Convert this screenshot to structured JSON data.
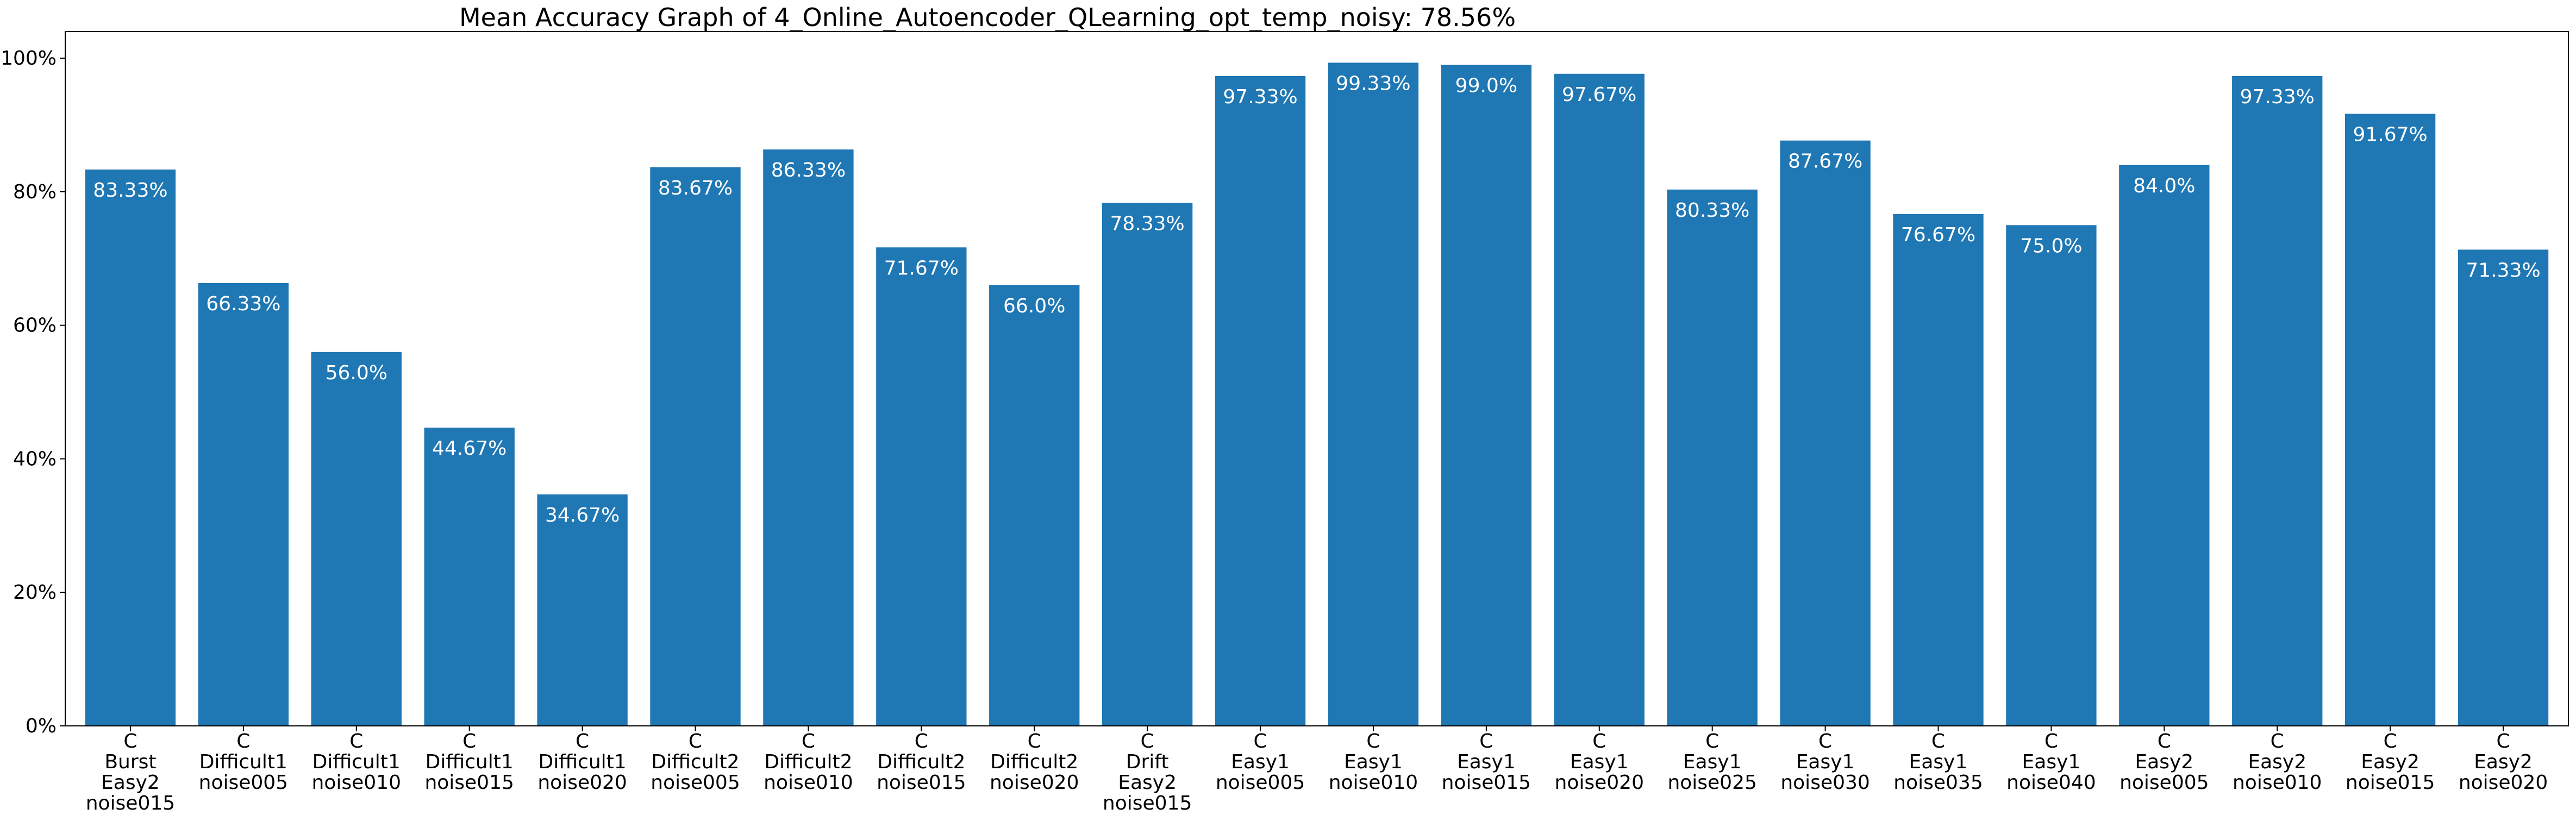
{
  "chart_data": {
    "type": "bar",
    "title": "Mean Accuracy Graph of 4_Online_Autoencoder_QLearning_opt_temp_noisy: 78.56%",
    "xlabel": "",
    "ylabel": "",
    "ylim": [
      0,
      104
    ],
    "yticks": [
      0,
      20,
      40,
      60,
      80,
      100
    ],
    "ytick_labels": [
      "0%",
      "20%",
      "40%",
      "60%",
      "80%",
      "100%"
    ],
    "grid": false,
    "bar_color": "#1f77b4",
    "label_color": "#ffffff",
    "categories": [
      [
        "C",
        "Burst",
        "Easy2",
        "noise015"
      ],
      [
        "C",
        "Difficult1",
        "noise005"
      ],
      [
        "C",
        "Difficult1",
        "noise010"
      ],
      [
        "C",
        "Difficult1",
        "noise015"
      ],
      [
        "C",
        "Difficult1",
        "noise020"
      ],
      [
        "C",
        "Difficult2",
        "noise005"
      ],
      [
        "C",
        "Difficult2",
        "noise010"
      ],
      [
        "C",
        "Difficult2",
        "noise015"
      ],
      [
        "C",
        "Difficult2",
        "noise020"
      ],
      [
        "C",
        "Drift",
        "Easy2",
        "noise015"
      ],
      [
        "C",
        "Easy1",
        "noise005"
      ],
      [
        "C",
        "Easy1",
        "noise010"
      ],
      [
        "C",
        "Easy1",
        "noise015"
      ],
      [
        "C",
        "Easy1",
        "noise020"
      ],
      [
        "C",
        "Easy1",
        "noise025"
      ],
      [
        "C",
        "Easy1",
        "noise030"
      ],
      [
        "C",
        "Easy1",
        "noise035"
      ],
      [
        "C",
        "Easy1",
        "noise040"
      ],
      [
        "C",
        "Easy2",
        "noise005"
      ],
      [
        "C",
        "Easy2",
        "noise010"
      ],
      [
        "C",
        "Easy2",
        "noise015"
      ],
      [
        "C",
        "Easy2",
        "noise020"
      ]
    ],
    "values": [
      83.33,
      66.33,
      56.0,
      44.67,
      34.67,
      83.67,
      86.33,
      71.67,
      66.0,
      78.33,
      97.33,
      99.33,
      99.0,
      97.67,
      80.33,
      87.67,
      76.67,
      75.0,
      84.0,
      97.33,
      91.67,
      71.33
    ],
    "data_labels": [
      "83.33%",
      "66.33%",
      "56.0%",
      "44.67%",
      "34.67%",
      "83.67%",
      "86.33%",
      "71.67%",
      "66.0%",
      "78.33%",
      "97.33%",
      "99.33%",
      "99.0%",
      "97.67%",
      "80.33%",
      "87.67%",
      "76.67%",
      "75.0%",
      "84.0%",
      "97.33%",
      "91.67%",
      "71.33%"
    ]
  }
}
